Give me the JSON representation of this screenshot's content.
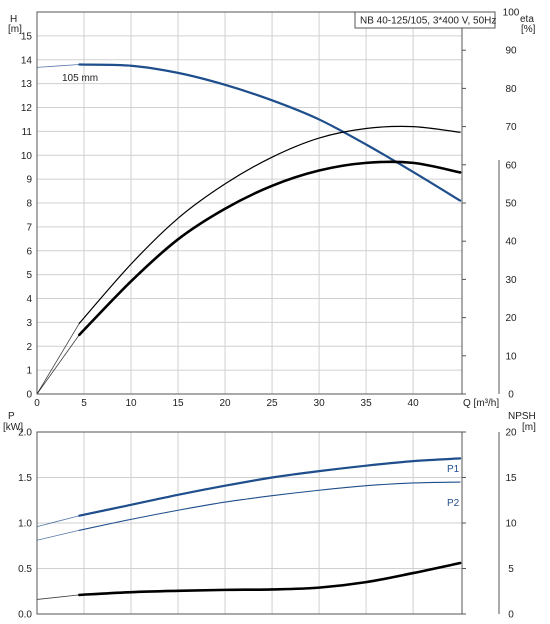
{
  "chart_data": [
    {
      "type": "line",
      "panel": "upper",
      "title": "NB 40-125/105, 3*400 V, 50Hz",
      "curve_label": "105 mm",
      "left_axis": {
        "label_top": "H",
        "label_unit": "[m]",
        "ylim": [
          0,
          16
        ],
        "ticks": [
          0,
          1,
          2,
          3,
          4,
          5,
          6,
          7,
          8,
          9,
          10,
          11,
          12,
          13,
          14,
          15
        ]
      },
      "right_axis": {
        "label_top": "eta",
        "label_unit": "[%]",
        "ylim": [
          0,
          100
        ],
        "ticks": [
          0,
          10,
          20,
          30,
          40,
          50,
          60,
          70,
          80,
          90,
          100
        ]
      },
      "x_axis": {
        "label": "Q [m³/h]",
        "xlim": [
          0,
          45.2
        ],
        "ticks": [
          0,
          5,
          10,
          15,
          20,
          25,
          30,
          35,
          40
        ]
      },
      "grid": true,
      "series": [
        {
          "key": "H",
          "axis": "left",
          "color": "#1f4e8c",
          "width": 2.2,
          "x": [
            4.5,
            10,
            15,
            20,
            25,
            30,
            35,
            40,
            45
          ],
          "y": [
            13.8,
            13.75,
            13.45,
            12.95,
            12.3,
            11.5,
            10.45,
            9.3,
            8.1
          ],
          "extension": {
            "x": [
              0,
              4.5
            ],
            "y": [
              13.68,
              13.8
            ]
          }
        },
        {
          "key": "eta_pump",
          "axis": "right",
          "color": "#000000",
          "width": 1.2,
          "x": [
            4.5,
            10,
            15,
            20,
            25,
            30,
            35,
            40,
            45
          ],
          "y": [
            18.5,
            34,
            46,
            55,
            62,
            67,
            69.5,
            70,
            68.5
          ],
          "extension": {
            "x": [
              0,
              4.5
            ],
            "y": [
              0,
              18.5
            ]
          }
        },
        {
          "key": "eta_total",
          "axis": "right",
          "color": "#000000",
          "width": 2.6,
          "x": [
            4.5,
            10,
            15,
            20,
            25,
            30,
            35,
            40,
            45
          ],
          "y": [
            15.5,
            29.5,
            40.5,
            48.5,
            54.5,
            58.5,
            60.5,
            60.5,
            58
          ],
          "extension": {
            "x": [
              0,
              4.5
            ],
            "y": [
              0,
              15.5
            ]
          }
        }
      ]
    },
    {
      "type": "line",
      "panel": "lower",
      "left_axis": {
        "label_top": "P",
        "label_unit": "[kW]",
        "ylim": [
          0,
          2.0
        ],
        "ticks": [
          "0.0",
          "0.5",
          "1.0",
          "1.5",
          "2.0"
        ]
      },
      "right_axis": {
        "label_top": "NPSH",
        "label_unit": "[m]",
        "ylim": [
          0,
          20
        ],
        "ticks": [
          0,
          5,
          10,
          15,
          20
        ]
      },
      "x_axis": {
        "xlim": [
          0,
          45.2
        ]
      },
      "grid": true,
      "series": [
        {
          "key": "P1",
          "name": "P1",
          "axis": "left",
          "color": "#1f4e8c",
          "width": 2.2,
          "x": [
            4.5,
            10,
            15,
            20,
            25,
            30,
            35,
            40,
            45
          ],
          "y": [
            1.08,
            1.2,
            1.31,
            1.41,
            1.5,
            1.57,
            1.63,
            1.68,
            1.71
          ],
          "extension": {
            "x": [
              0,
              4.5
            ],
            "y": [
              0.96,
              1.08
            ]
          }
        },
        {
          "key": "P2",
          "name": "P2",
          "axis": "left",
          "color": "#1f4e8c",
          "width": 1.1,
          "x": [
            4.5,
            10,
            15,
            20,
            25,
            30,
            35,
            40,
            45
          ],
          "y": [
            0.92,
            1.04,
            1.14,
            1.23,
            1.3,
            1.36,
            1.41,
            1.44,
            1.45
          ],
          "extension": {
            "x": [
              0,
              4.5
            ],
            "y": [
              0.81,
              0.92
            ]
          }
        },
        {
          "key": "NPSH",
          "axis": "right",
          "color": "#000000",
          "width": 2.6,
          "x": [
            4.5,
            10,
            15,
            20,
            25,
            30,
            35,
            40,
            45
          ],
          "y": [
            2.1,
            2.4,
            2.55,
            2.65,
            2.7,
            2.9,
            3.5,
            4.5,
            5.6
          ],
          "extension": {
            "x": [
              0,
              4.5
            ],
            "y": [
              1.6,
              2.1
            ]
          }
        }
      ]
    }
  ]
}
